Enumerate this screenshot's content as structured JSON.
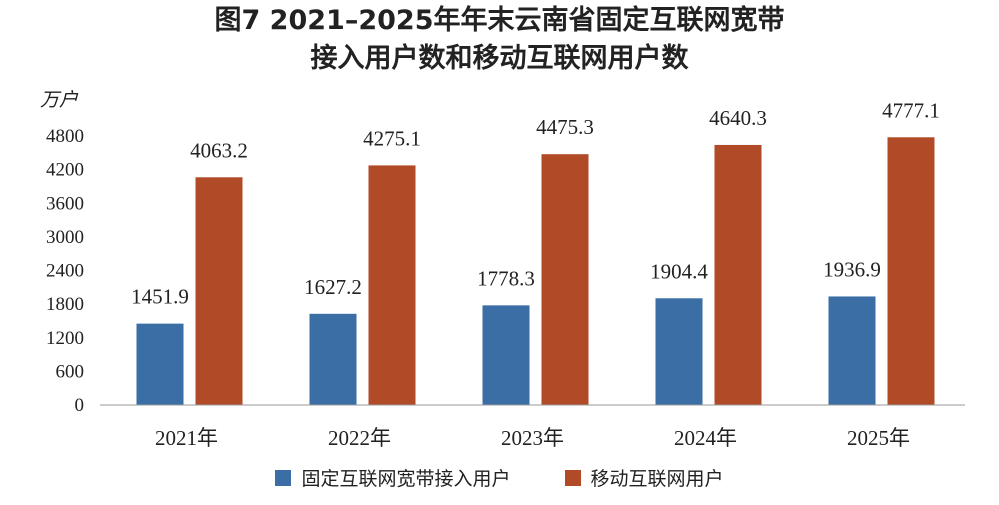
{
  "colors": {
    "series1": "#3a6ea5",
    "series2": "#b04a27",
    "axis": "#999999"
  },
  "chart_data": {
    "type": "bar",
    "title_lines": [
      "图7 2021–2025年年末云南省固定互联网宽带",
      "接入用户数和移动互联网用户数"
    ],
    "unit_label": "万户",
    "categories": [
      "2021年",
      "2022年",
      "2023年",
      "2024年",
      "2025年"
    ],
    "series": [
      {
        "name": "固定互联网宽带接入用户",
        "values": [
          1451.9,
          1627.2,
          1778.3,
          1904.4,
          1936.9
        ]
      },
      {
        "name": "移动互联网用户",
        "values": [
          4063.2,
          4275.1,
          4475.3,
          4640.3,
          4777.1
        ]
      }
    ],
    "data_labels": [
      [
        "1451.9",
        "1627.2",
        "1778.3",
        "1904.4",
        "1936.9"
      ],
      [
        "4063.2",
        "4275.1",
        "4475.3",
        "4640.3",
        "4777.1"
      ]
    ],
    "ylim": [
      0,
      4800
    ],
    "yticks": [
      "0",
      "600",
      "1200",
      "1800",
      "2400",
      "3000",
      "3600",
      "4200",
      "4800"
    ],
    "grid": false,
    "legend_position": "bottom"
  }
}
